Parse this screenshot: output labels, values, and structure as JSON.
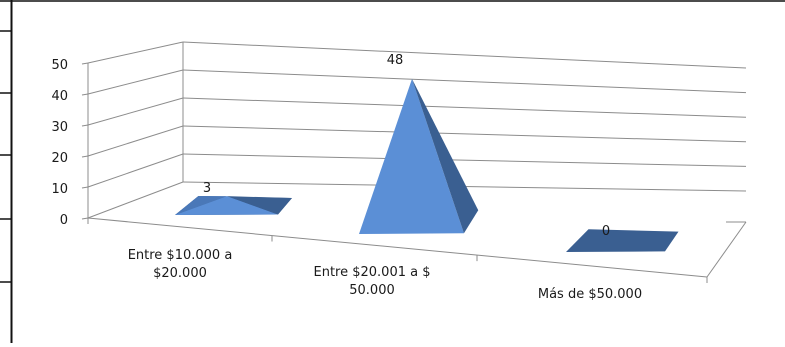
{
  "chart_data": {
    "type": "bar",
    "subtype": "3d-pyramid",
    "title": "",
    "xlabel": "",
    "ylabel": "",
    "categories": [
      [
        "Entre $10.000 a",
        "$20.000"
      ],
      [
        "Entre $20.001 a $",
        "50.000"
      ],
      [
        "Más de $50.000"
      ]
    ],
    "values": [
      3,
      48,
      0
    ],
    "data_labels": [
      "3",
      "48",
      "0"
    ],
    "ylim": [
      0,
      50
    ],
    "yticks": [
      "0",
      "10",
      "20",
      "30",
      "40",
      "50"
    ],
    "grid": true,
    "legend": "none",
    "colors": {
      "front": "#5b8fd6",
      "side": "#3a5f91",
      "top": "#4a78b8",
      "wall_lines": "#8c8c8c",
      "frame": "#111111"
    }
  }
}
